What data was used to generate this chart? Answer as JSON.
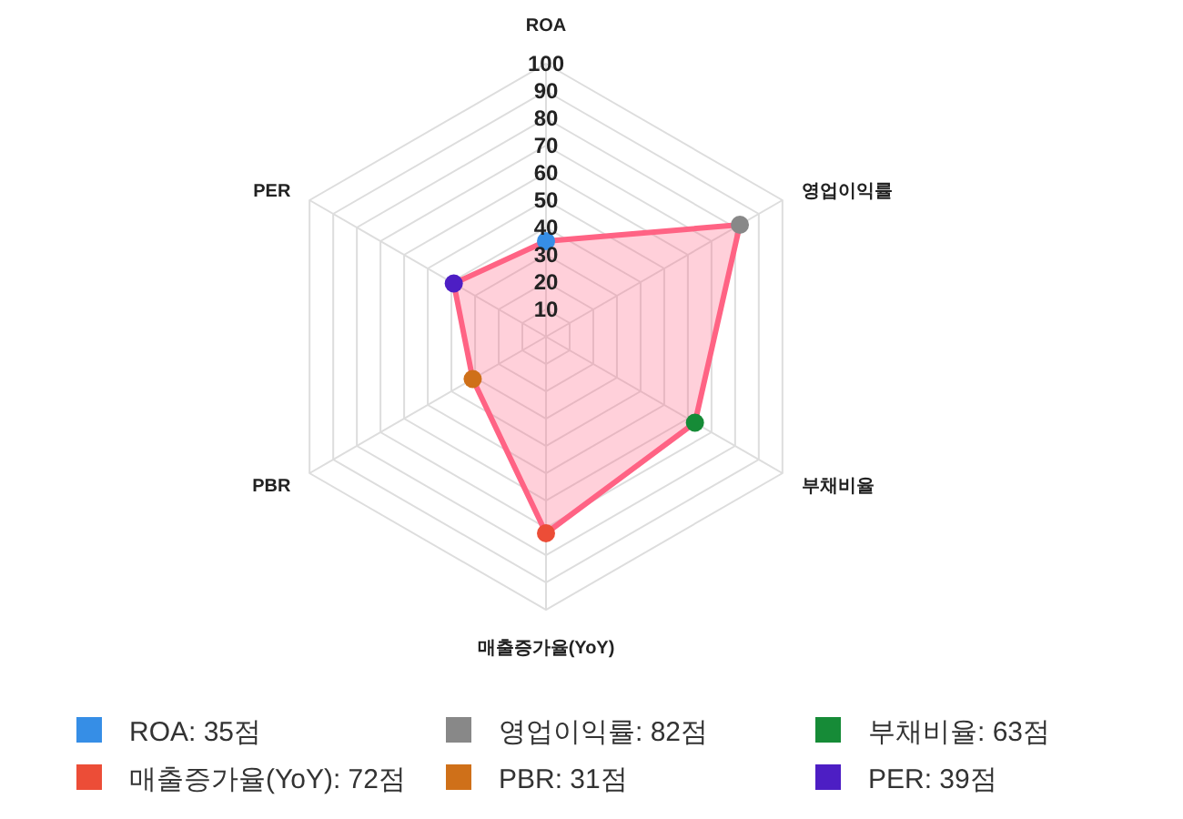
{
  "chart_data": {
    "type": "radar",
    "categories": [
      "ROA",
      "영업이익률",
      "부채비율",
      "매출증가율(YoY)",
      "PBR",
      "PER"
    ],
    "series": [
      {
        "color": "#ff6384",
        "values": [
          35,
          82,
          63,
          72,
          31,
          39
        ],
        "colors": [
          "#368ee6",
          "#888888",
          "#168b37",
          "#ec4d37",
          "#cf7019",
          "#4d1ec4"
        ]
      }
    ],
    "annotations": [
      "ROA: 35점",
      "영업이익률: 82점",
      "부채비율: 63점",
      "매출증가율(YoY): 72점",
      "PBR: 31점",
      "PER: 39점"
    ],
    "ylim": [
      0,
      100
    ],
    "yticks": [
      10,
      20,
      30,
      40,
      50,
      60,
      70,
      80,
      90,
      100
    ],
    "grid": true,
    "marker": "circle"
  }
}
